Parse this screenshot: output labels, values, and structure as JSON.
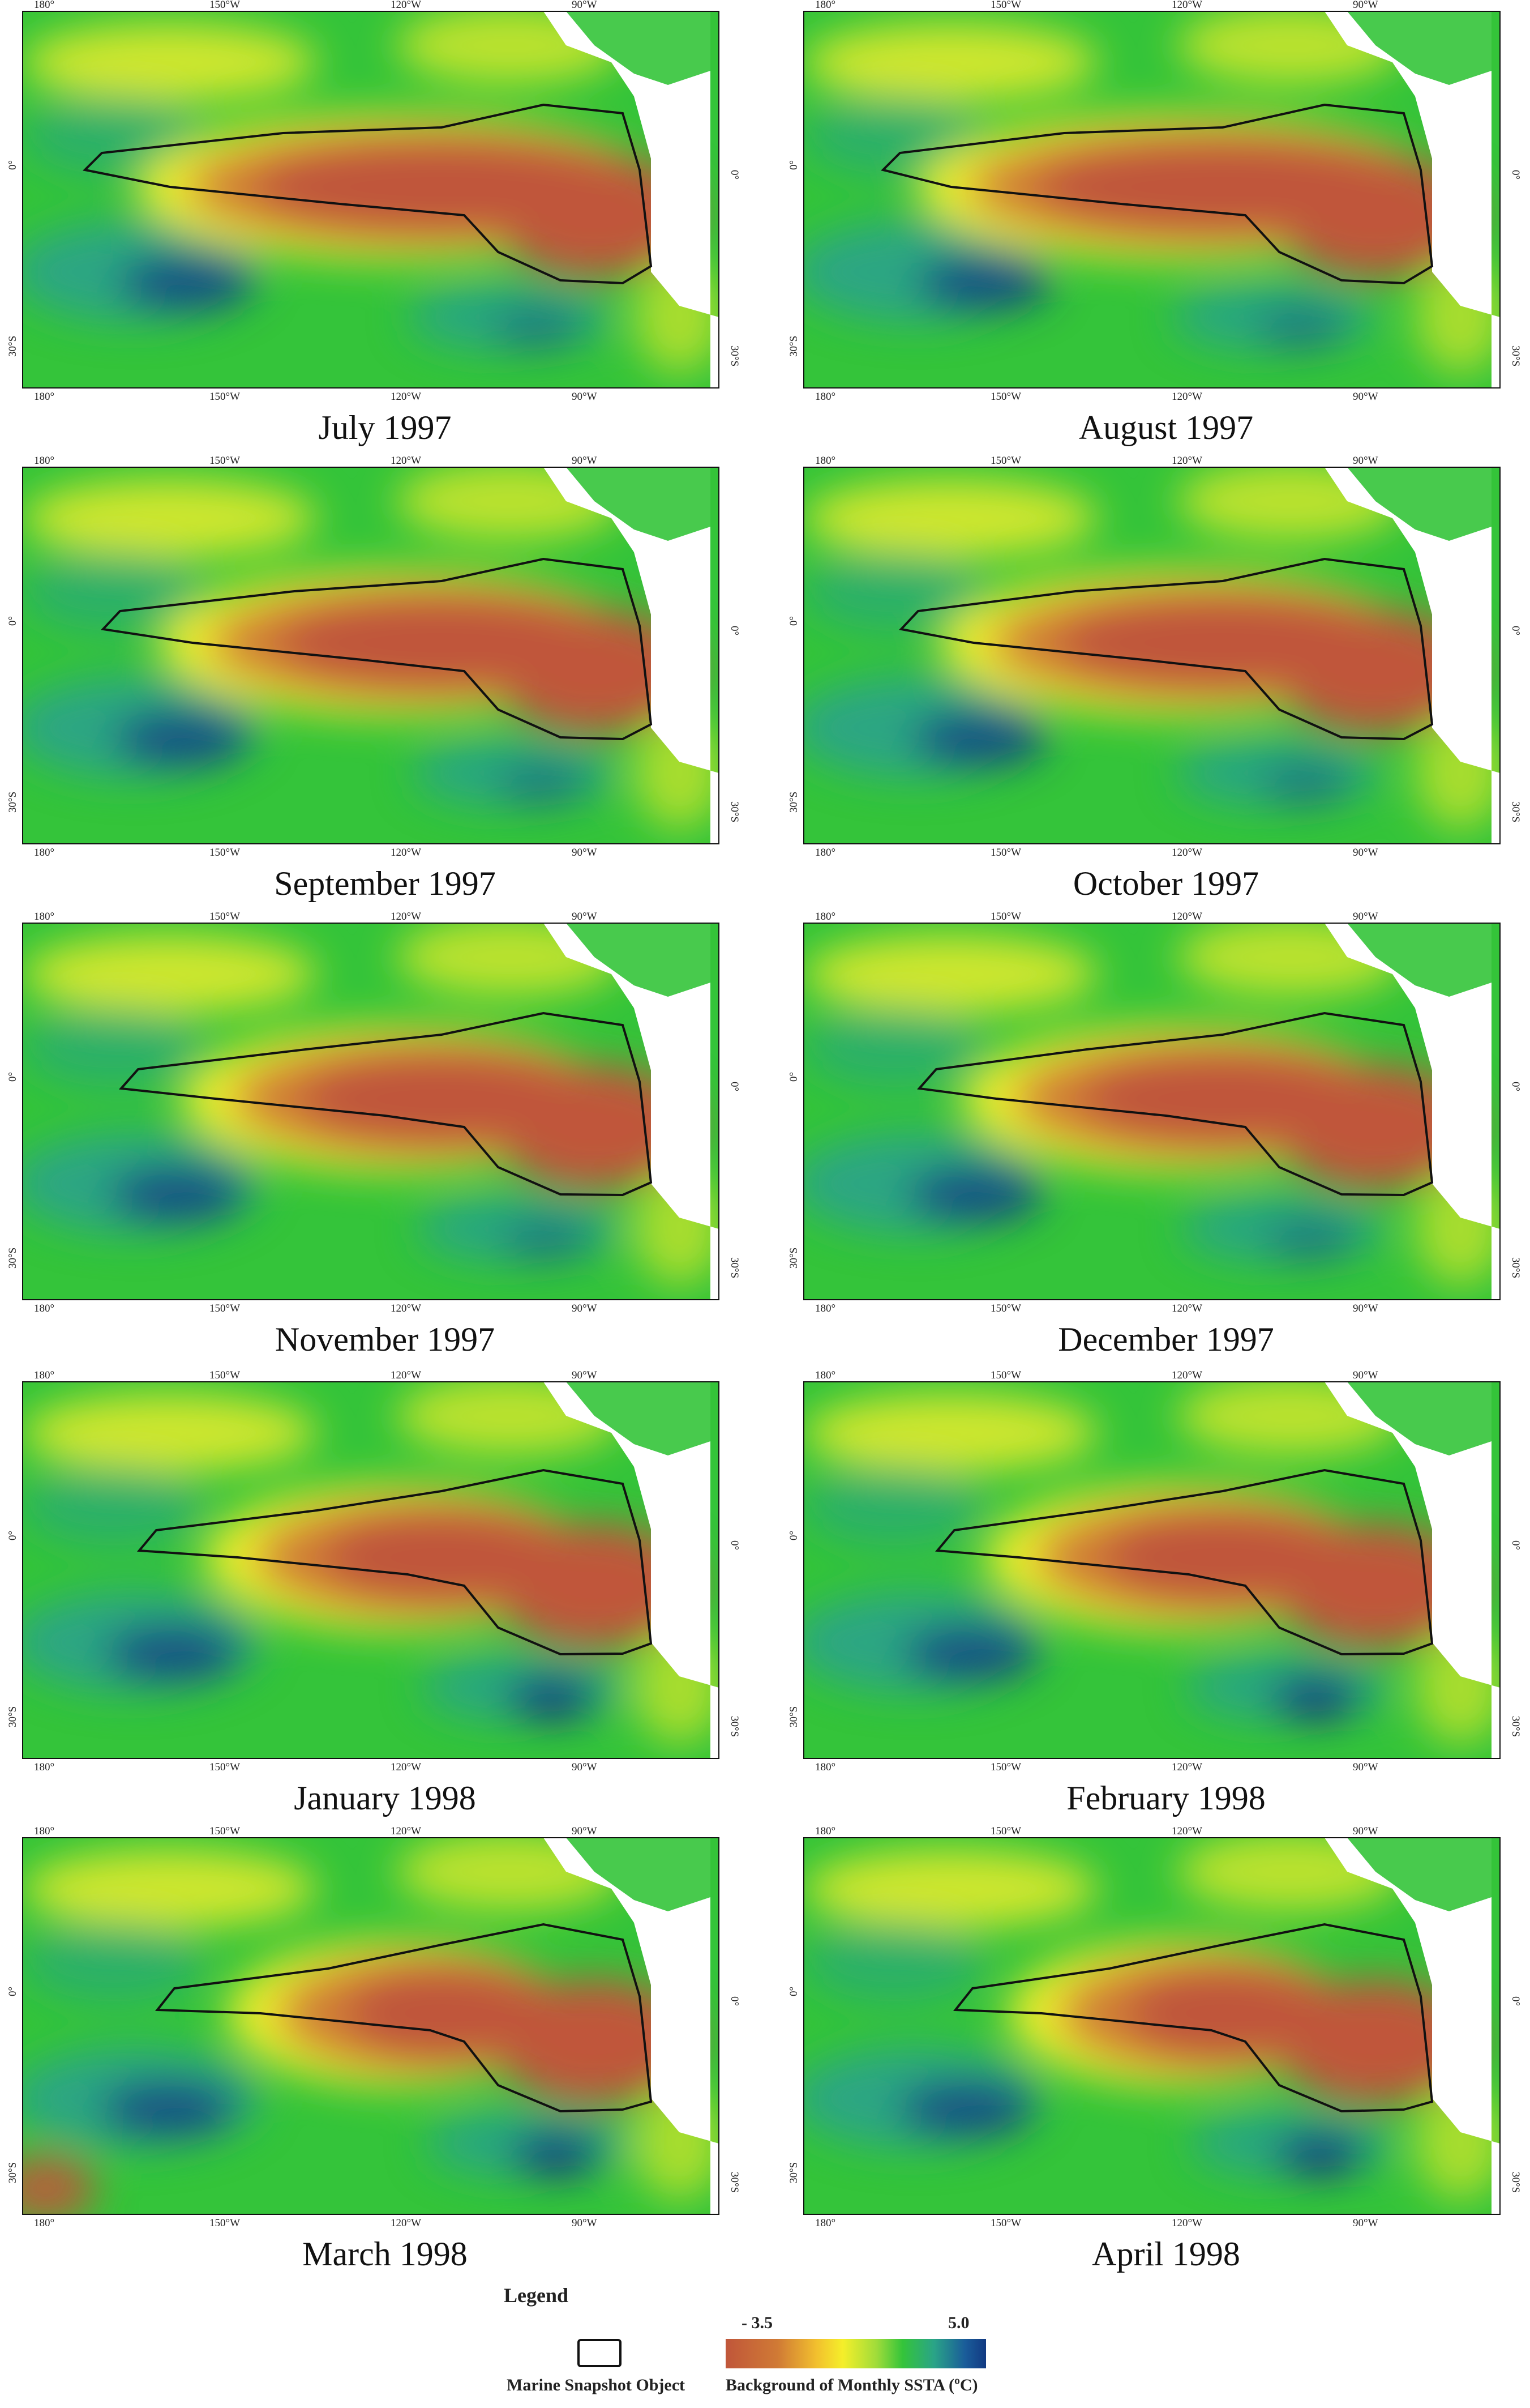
{
  "ticks": {
    "top": [
      "180°",
      "150°W",
      "120°W",
      "90°W"
    ],
    "bottom": [
      "180°",
      "150°W",
      "120°W",
      "90°W"
    ],
    "left": [
      "0°",
      "30°S"
    ],
    "right": [
      "0°",
      "30°S"
    ]
  },
  "panels": [
    {
      "caption": "July 1997"
    },
    {
      "caption": "August 1997"
    },
    {
      "caption": "September 1997"
    },
    {
      "caption": "October 1997"
    },
    {
      "caption": "November 1997"
    },
    {
      "caption": "December 1997"
    },
    {
      "caption": "January 1998"
    },
    {
      "caption": "February 1998"
    },
    {
      "caption": "March 1998"
    },
    {
      "caption": "April 1998"
    }
  ],
  "legend": {
    "title": "Legend",
    "object_label": "Marine Snapshot Object",
    "ramp_label": "Background of Monthly SSTA (ºC)",
    "ramp_max": "5.0",
    "ramp_min": "- 3.5",
    "colors": {
      "warm": "#c0563a",
      "yellow": "#f5ef2a",
      "green": "#34c43a",
      "teal": "#2aa487",
      "cold": "#123a82",
      "land": "#ffffff",
      "outline": "#111111"
    }
  }
}
